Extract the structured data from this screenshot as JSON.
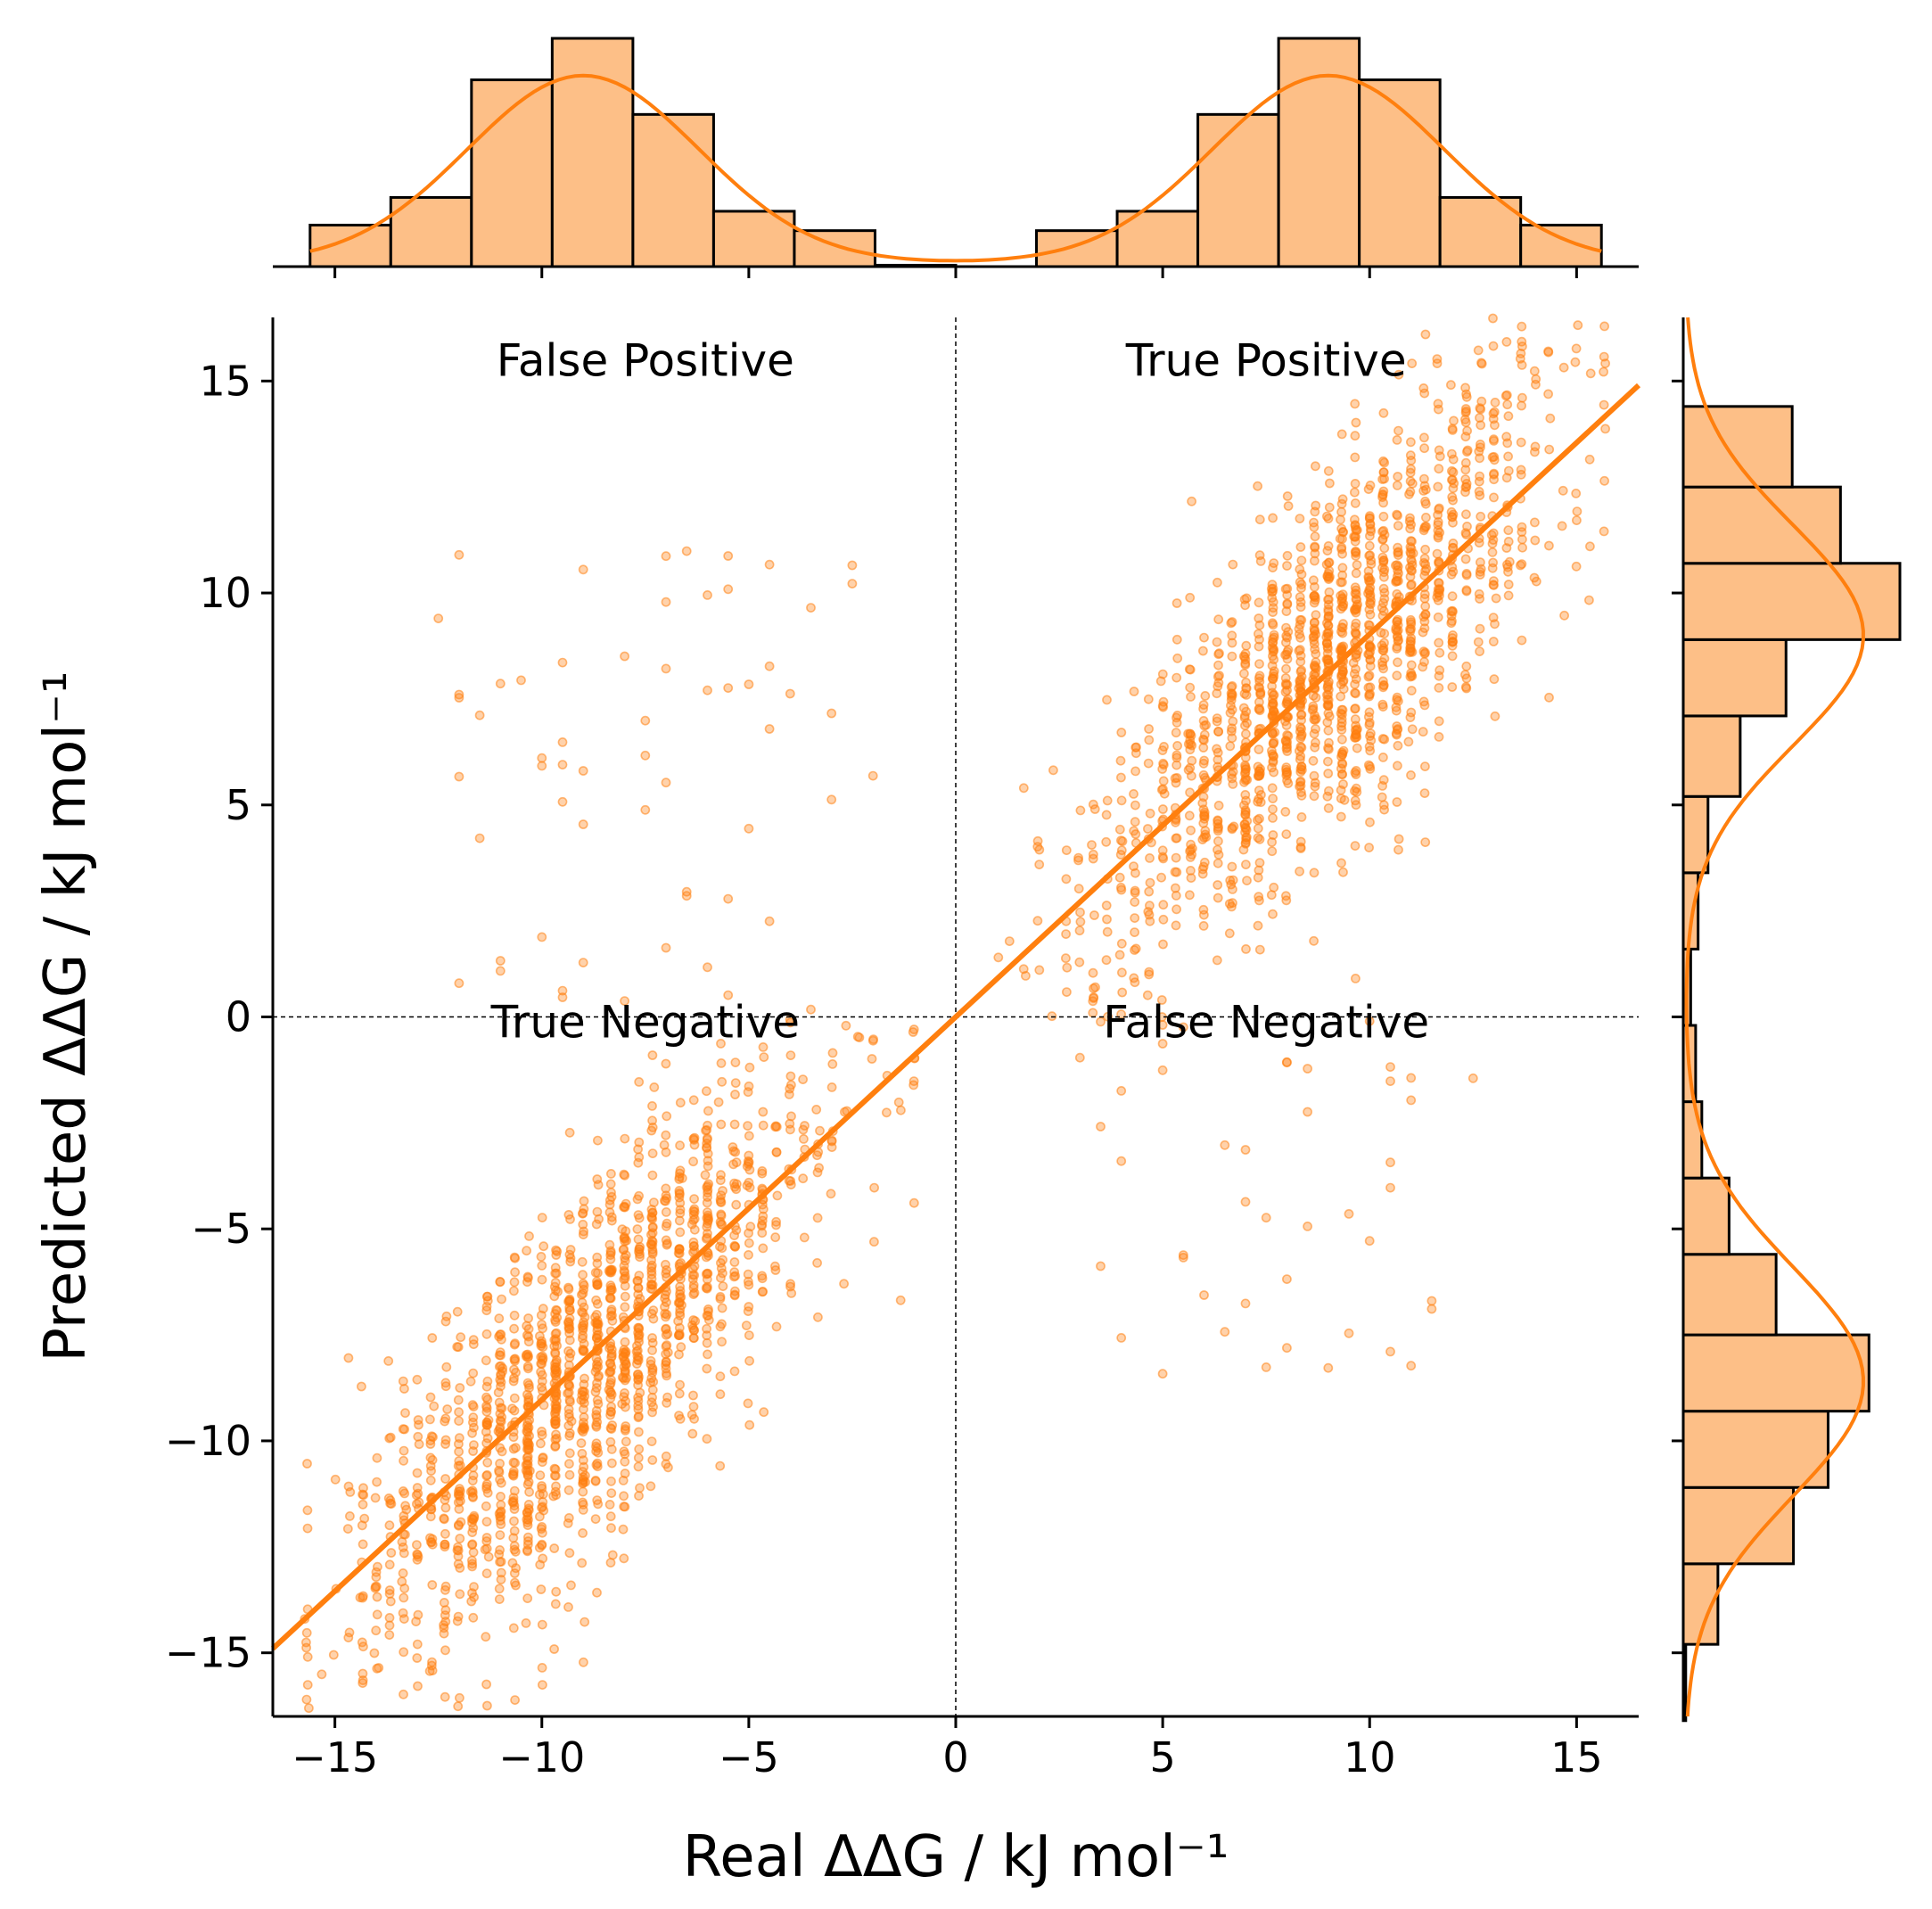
{
  "chart_data": {
    "type": "scatter",
    "xlabel": "Real ΔΔG / kJ mol⁻¹",
    "ylabel": "Predicted ΔΔG / kJ mol⁻¹",
    "xlim": [
      -16.5,
      16.5
    ],
    "ylim": [
      -16.5,
      16.5
    ],
    "xticks": [
      -15,
      -10,
      -5,
      0,
      5,
      10,
      15
    ],
    "yticks": [
      -15,
      -10,
      -5,
      0,
      5,
      10,
      15
    ],
    "grid": false,
    "color": "#ff7f0e",
    "hist_fill": "#fdbf87",
    "reference_lines": {
      "x": 0,
      "y": 0,
      "style": "dashed"
    },
    "fit_line": {
      "x": [
        -16.5,
        16.5
      ],
      "y": [
        -14.9,
        14.9
      ]
    },
    "quadrant_labels": [
      {
        "text": "False Positive",
        "x": -7.5,
        "y": 15.5
      },
      {
        "text": "True Positive",
        "x": 7.5,
        "y": 15.5
      },
      {
        "text": "True Negative",
        "x": -7.5,
        "y": -0.1
      },
      {
        "text": "False Negative",
        "x": 7.5,
        "y": -0.1
      }
    ],
    "scatter_clusters": [
      {
        "name": "true-positive",
        "x_range": [
          1,
          15.5
        ],
        "y_range": [
          0,
          16
        ],
        "n": 1500
      },
      {
        "name": "true-negative",
        "x_range": [
          -15.5,
          -1
        ],
        "y_range": [
          -16,
          0
        ],
        "n": 1500
      },
      {
        "name": "false-positive",
        "x_range": [
          -12.5,
          -2
        ],
        "y_range": [
          0,
          11.5
        ],
        "n": 60
      },
      {
        "name": "false-negative",
        "x_range": [
          3,
          12.5
        ],
        "y_range": [
          -8.5,
          0
        ],
        "n": 45
      }
    ],
    "marginal_x": {
      "bin_edges": [
        -15.6,
        -13.65,
        -11.7,
        -9.75,
        -7.8,
        -5.85,
        -3.9,
        -1.95,
        0,
        1.95,
        3.9,
        5.85,
        7.8,
        9.75,
        11.7,
        13.65,
        15.6
      ],
      "counts": [
        60,
        100,
        270,
        330,
        220,
        80,
        52,
        2,
        0,
        52,
        80,
        220,
        330,
        270,
        100,
        60
      ]
    },
    "marginal_y": {
      "bin_edges": [
        -16.6,
        -14.8,
        -12.9,
        -11.1,
        -9.3,
        -7.5,
        -5.6,
        -3.8,
        -2.0,
        -0.2,
        1.6,
        3.4,
        5.2,
        7.1,
        8.9,
        10.7,
        12.5,
        14.4
      ],
      "counts": [
        2,
        28,
        89,
        117,
        150,
        75,
        37,
        15,
        10,
        6,
        12,
        20,
        46,
        83,
        175,
        127,
        88
      ]
    }
  }
}
